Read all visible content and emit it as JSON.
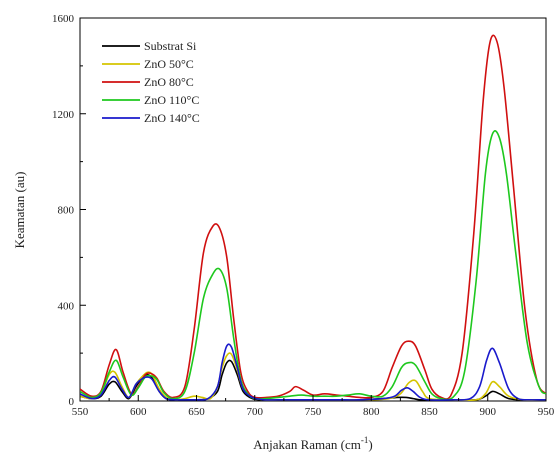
{
  "chart_data": {
    "type": "line",
    "title": "",
    "xlabel": "Anjakan Raman (cm",
    "xlabel_sup": "-1",
    "xlabel_close": ")",
    "ylabel": "Keamatan (au)",
    "xlim": [
      550,
      950
    ],
    "ylim": [
      0,
      1600
    ],
    "xticks": [
      "550",
      "600",
      "650",
      "700",
      "750",
      "800",
      "850",
      "900",
      "950"
    ],
    "yticks": [
      "0",
      "400",
      "800",
      "1200",
      "1600"
    ],
    "legend_position": "top-left",
    "grid": false,
    "series": [
      {
        "name": "Substrat Si",
        "color": "#000000",
        "x": [
          550,
          560,
          568,
          575,
          580,
          586,
          592,
          598,
          604,
          608,
          612,
          618,
          624,
          632,
          640,
          650,
          660,
          668,
          672,
          676,
          680,
          685,
          690,
          698,
          708,
          720,
          735,
          750,
          770,
          790,
          810,
          822,
          830,
          836,
          842,
          850,
          870,
          890,
          898,
          904,
          910,
          918,
          930,
          945,
          950
        ],
        "y": [
          20,
          10,
          20,
          70,
          80,
          40,
          10,
          60,
          100,
          110,
          95,
          40,
          10,
          5,
          5,
          5,
          10,
          40,
          110,
          160,
          165,
          110,
          40,
          10,
          5,
          5,
          5,
          5,
          5,
          5,
          10,
          15,
          15,
          10,
          5,
          5,
          5,
          5,
          20,
          40,
          30,
          10,
          5,
          5,
          5
        ]
      },
      {
        "name": "ZnO 50°C",
        "color": "#d4c400",
        "x": [
          550,
          560,
          568,
          575,
          580,
          586,
          592,
          598,
          604,
          608,
          612,
          618,
          624,
          632,
          640,
          648,
          655,
          662,
          668,
          672,
          676,
          680,
          685,
          690,
          698,
          708,
          720,
          740,
          760,
          780,
          800,
          815,
          825,
          832,
          838,
          844,
          850,
          870,
          890,
          898,
          904,
          910,
          918,
          930,
          945,
          950
        ],
        "y": [
          20,
          10,
          30,
          110,
          120,
          60,
          15,
          70,
          105,
          120,
          110,
          50,
          15,
          5,
          10,
          20,
          15,
          10,
          60,
          140,
          190,
          195,
          130,
          50,
          15,
          5,
          5,
          5,
          5,
          5,
          5,
          10,
          30,
          75,
          85,
          40,
          10,
          5,
          5,
          30,
          80,
          60,
          20,
          5,
          5,
          5
        ]
      },
      {
        "name": "ZnO 80°C",
        "color": "#d01010",
        "x": [
          550,
          560,
          568,
          575,
          581,
          587,
          594,
          600,
          606,
          611,
          616,
          622,
          630,
          640,
          648,
          656,
          664,
          670,
          676,
          682,
          688,
          694,
          700,
          710,
          720,
          730,
          735,
          742,
          750,
          760,
          770,
          780,
          790,
          800,
          810,
          818,
          826,
          832,
          838,
          846,
          852,
          860,
          868,
          878,
          888,
          896,
          902,
          908,
          914,
          922,
          932,
          942,
          950
        ],
        "y": [
          50,
          20,
          40,
          150,
          215,
          120,
          30,
          60,
          110,
          115,
          95,
          40,
          15,
          60,
          300,
          620,
          730,
          720,
          600,
          340,
          120,
          40,
          15,
          15,
          20,
          40,
          60,
          45,
          25,
          30,
          25,
          20,
          15,
          15,
          40,
          140,
          230,
          250,
          230,
          130,
          50,
          15,
          20,
          200,
          700,
          1250,
          1500,
          1500,
          1310,
          900,
          380,
          90,
          30
        ]
      },
      {
        "name": "ZnO 110°C",
        "color": "#1ec81e",
        "x": [
          550,
          560,
          568,
          575,
          581,
          587,
          594,
          600,
          606,
          611,
          616,
          622,
          630,
          640,
          648,
          656,
          664,
          670,
          676,
          682,
          688,
          694,
          700,
          710,
          720,
          730,
          740,
          750,
          760,
          770,
          780,
          790,
          800,
          810,
          818,
          826,
          832,
          838,
          846,
          852,
          860,
          870,
          880,
          890,
          898,
          904,
          910,
          916,
          924,
          934,
          944,
          950
        ],
        "y": [
          40,
          15,
          35,
          120,
          170,
          100,
          25,
          55,
          100,
          105,
          90,
          35,
          10,
          40,
          200,
          430,
          530,
          550,
          470,
          260,
          90,
          30,
          10,
          10,
          15,
          20,
          25,
          20,
          20,
          20,
          25,
          30,
          20,
          20,
          60,
          140,
          160,
          150,
          80,
          30,
          10,
          15,
          120,
          500,
          950,
          1115,
          1100,
          950,
          620,
          240,
          60,
          30
        ]
      },
      {
        "name": "ZnO 140°C",
        "color": "#1a1acc",
        "x": [
          550,
          560,
          568,
          575,
          580,
          586,
          592,
          598,
          604,
          608,
          612,
          618,
          624,
          632,
          640,
          650,
          660,
          668,
          672,
          676,
          680,
          685,
          690,
          698,
          708,
          720,
          735,
          750,
          770,
          790,
          810,
          820,
          826,
          831,
          836,
          842,
          850,
          870,
          885,
          893,
          899,
          904,
          910,
          918,
          926,
          935,
          945,
          950
        ],
        "y": [
          30,
          10,
          25,
          85,
          100,
          50,
          15,
          70,
          95,
          100,
          90,
          40,
          10,
          5,
          5,
          5,
          10,
          60,
          160,
          230,
          225,
          140,
          50,
          15,
          5,
          5,
          5,
          5,
          5,
          5,
          10,
          20,
          45,
          55,
          40,
          15,
          5,
          5,
          10,
          60,
          170,
          220,
          160,
          50,
          10,
          5,
          5,
          5
        ]
      }
    ]
  }
}
